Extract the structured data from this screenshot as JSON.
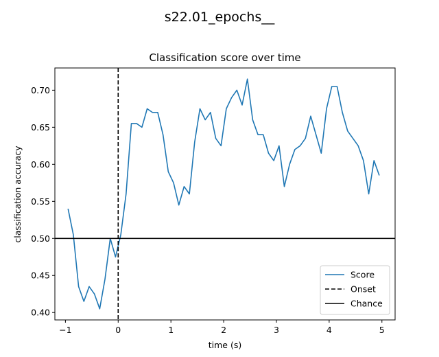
{
  "figure": {
    "suptitle": "s22.01_epochs__"
  },
  "chart_data": {
    "type": "line",
    "title": "Classification score over time",
    "xlabel": "time (s)",
    "ylabel": "classification accuracy",
    "xlim": [
      -1.2,
      5.25
    ],
    "ylim": [
      0.39,
      0.73
    ],
    "xticks": [
      -1,
      0,
      1,
      2,
      3,
      4,
      5
    ],
    "xtick_labels": [
      "−1",
      "0",
      "1",
      "2",
      "3",
      "4",
      "5"
    ],
    "yticks": [
      0.4,
      0.45,
      0.5,
      0.55,
      0.6,
      0.65,
      0.7
    ],
    "ytick_labels": [
      "0.40",
      "0.45",
      "0.50",
      "0.55",
      "0.60",
      "0.65",
      "0.70"
    ],
    "grid": false,
    "legend_position": "lower right",
    "series": [
      {
        "name": "Score",
        "color": "#1f77b4",
        "style": "solid",
        "x": [
          -0.95,
          -0.85,
          -0.75,
          -0.65,
          -0.55,
          -0.45,
          -0.35,
          -0.25,
          -0.15,
          -0.05,
          0.05,
          0.15,
          0.25,
          0.35,
          0.45,
          0.55,
          0.65,
          0.75,
          0.85,
          0.95,
          1.05,
          1.15,
          1.25,
          1.35,
          1.45,
          1.55,
          1.65,
          1.75,
          1.85,
          1.95,
          2.05,
          2.15,
          2.25,
          2.35,
          2.45,
          2.55,
          2.65,
          2.75,
          2.85,
          2.95,
          3.05,
          3.15,
          3.25,
          3.35,
          3.45,
          3.55,
          3.65,
          3.75,
          3.85,
          3.95,
          4.05,
          4.15,
          4.25,
          4.35,
          4.45,
          4.55,
          4.65,
          4.75,
          4.85,
          4.95
        ],
        "y": [
          0.54,
          0.505,
          0.435,
          0.415,
          0.435,
          0.425,
          0.405,
          0.445,
          0.5,
          0.475,
          0.505,
          0.56,
          0.655,
          0.655,
          0.65,
          0.675,
          0.67,
          0.67,
          0.64,
          0.59,
          0.575,
          0.545,
          0.57,
          0.56,
          0.63,
          0.675,
          0.66,
          0.67,
          0.635,
          0.625,
          0.675,
          0.69,
          0.7,
          0.68,
          0.715,
          0.66,
          0.64,
          0.64,
          0.615,
          0.605,
          0.625,
          0.57,
          0.6,
          0.62,
          0.625,
          0.635,
          0.665,
          0.64,
          0.615,
          0.675,
          0.705,
          0.705,
          0.67,
          0.645,
          0.635,
          0.625,
          0.605,
          0.56,
          0.605,
          0.585
        ]
      }
    ],
    "reference_lines": [
      {
        "name": "Onset",
        "orientation": "vertical",
        "value": 0,
        "color": "#000000",
        "style": "dashed"
      },
      {
        "name": "Chance",
        "orientation": "horizontal",
        "value": 0.5,
        "color": "#000000",
        "style": "solid"
      }
    ]
  }
}
